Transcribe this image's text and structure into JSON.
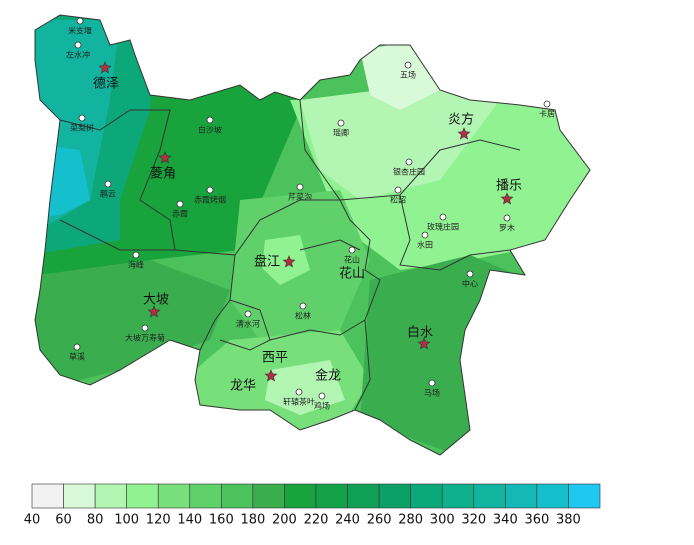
{
  "places": [
    {
      "label": "米支堰"
    },
    {
      "label": "左水冲"
    },
    {
      "label": "德泽"
    },
    {
      "label": "菜梨树"
    },
    {
      "label": "白沙坡"
    },
    {
      "label": "菱角"
    },
    {
      "label": "赤霞烤烟"
    },
    {
      "label": "赤霞"
    },
    {
      "label": "鹏云"
    },
    {
      "label": "海峰"
    },
    {
      "label": "大坡"
    },
    {
      "label": "大坡万寿菊"
    },
    {
      "label": "草溪"
    },
    {
      "label": "盘江"
    },
    {
      "label": "花山"
    },
    {
      "label": "花山"
    },
    {
      "label": "芹菜沟"
    },
    {
      "label": "松林"
    },
    {
      "label": "清水河"
    },
    {
      "label": "西平"
    },
    {
      "label": "龙华"
    },
    {
      "label": "金龙"
    },
    {
      "label": "轩辕茶叶"
    },
    {
      "label": "鸡场"
    },
    {
      "label": "白水"
    },
    {
      "label": "马场"
    },
    {
      "label": "中心"
    },
    {
      "label": "炎方"
    },
    {
      "label": "播乐"
    },
    {
      "label": "罗木"
    },
    {
      "label": "水田"
    },
    {
      "label": "玫瑰庄园"
    },
    {
      "label": "松韶"
    },
    {
      "label": "银杏庄园"
    },
    {
      "label": "瑶卿"
    },
    {
      "label": "五场"
    },
    {
      "label": "卡居"
    }
  ],
  "legend": {
    "colors": [
      "#f2f2f2",
      "#d9fad9",
      "#b3f5b3",
      "#91f291",
      "#78e07a",
      "#5fd06a",
      "#4cc25c",
      "#3aae4e",
      "#18a33c",
      "#14a046",
      "#0fa055",
      "#0aa066",
      "#0ca87a",
      "#0fb08c",
      "#12b4a0",
      "#14b8b4",
      "#15c0cc",
      "#1ec8f0"
    ],
    "ticks": [
      40,
      60,
      80,
      100,
      120,
      140,
      160,
      180,
      200,
      220,
      240,
      260,
      280,
      300,
      320,
      340,
      360,
      380
    ]
  }
}
